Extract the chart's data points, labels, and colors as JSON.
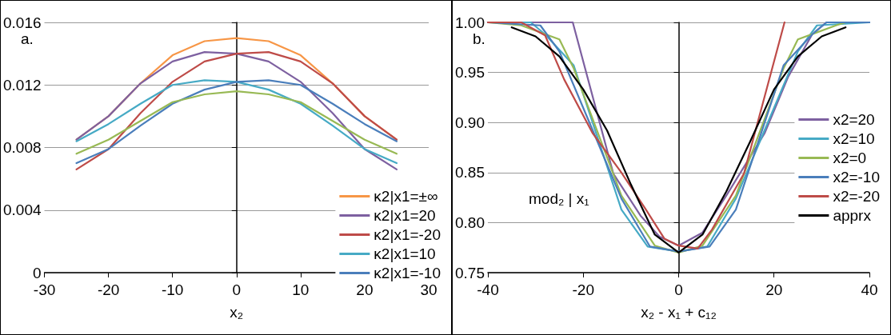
{
  "chart_data": [
    {
      "type": "line",
      "title": "a.",
      "xlabel": "x₂",
      "xlim": [
        -30,
        30
      ],
      "xticks": [
        -30,
        -20,
        -10,
        0,
        10,
        20,
        30
      ],
      "ylim": [
        0,
        0.016
      ],
      "yticks": [
        0,
        0.004,
        0.008,
        0.012,
        0.016
      ],
      "grid": "y",
      "legend": "bottom right",
      "marker": "none",
      "line_style": "solid",
      "x": [
        -25,
        -20,
        -15,
        -10,
        -5,
        0,
        5,
        10,
        15,
        20,
        25
      ],
      "series": [
        {
          "name": "κ2|x1=±∞",
          "color": "#f79646",
          "values": [
            0.0085,
            0.01,
            0.0121,
            0.0139,
            0.0148,
            0.015,
            0.0148,
            0.0139,
            0.0121,
            0.01,
            0.0085
          ]
        },
        {
          "name": "κ2|x1=20",
          "color": "#7d60a0",
          "values": [
            0.0085,
            0.01,
            0.0121,
            0.0135,
            0.0141,
            0.014,
            0.0135,
            0.0122,
            0.0102,
            0.0079,
            0.0066
          ]
        },
        {
          "name": "κ2|x1=-20",
          "color": "#be4b48",
          "values": [
            0.0066,
            0.0079,
            0.0102,
            0.0122,
            0.0135,
            0.014,
            0.0141,
            0.0135,
            0.0121,
            0.01,
            0.0085
          ]
        },
        {
          "name": "κ2|x1=10",
          "color": "#46aac5",
          "values": [
            0.0084,
            0.0095,
            0.0108,
            0.012,
            0.0123,
            0.0122,
            0.0117,
            0.0108,
            0.0094,
            0.0079,
            0.007
          ]
        },
        {
          "name": "κ2|x1=-10",
          "color": "#4a7ebb",
          "values": [
            0.007,
            0.0079,
            0.0094,
            0.0108,
            0.0117,
            0.0122,
            0.0123,
            0.012,
            0.0108,
            0.0095,
            0.0084
          ]
        },
        {
          "color": "#98b954",
          "values": [
            0.0076,
            0.0085,
            0.0097,
            0.0109,
            0.0114,
            0.0116,
            0.0114,
            0.0109,
            0.0097,
            0.0085,
            0.0076
          ]
        }
      ]
    },
    {
      "type": "line",
      "title": "b.",
      "xlabel": "x₂ - x₁ + c₁₂",
      "ylabel": "mod₂ | x₁",
      "xlim": [
        -40,
        40
      ],
      "xticks": [
        -40,
        -20,
        0,
        20,
        40
      ],
      "ylim": [
        0.75,
        1
      ],
      "yticks": [
        {
          "value": 0.75,
          "label": "0.75"
        },
        {
          "value": 0.8,
          "label": "0.80"
        },
        {
          "value": 0.85,
          "label": "0.85"
        },
        {
          "value": 0.9,
          "label": "0.90"
        },
        {
          "value": 0.95,
          "label": "0.95"
        },
        {
          "value": 1,
          "label": "1.00"
        }
      ],
      "grid": "y",
      "legend": "right",
      "marker": "none",
      "line_style": "solid",
      "series": [
        {
          "name": "x2=20",
          "color": "#7d60a0",
          "x": [
            -40,
            -22.2,
            -13.7,
            -8,
            -4,
            0,
            5,
            10,
            18,
            23,
            28,
            31,
            40
          ],
          "values": [
            1,
            1,
            0.849,
            0.807,
            0.786,
            0.777,
            0.79,
            0.827,
            0.889,
            0.946,
            0.988,
            1,
            1
          ]
        },
        {
          "name": "x2=10",
          "color": "#46aac5",
          "x": [
            -40,
            -31,
            -28,
            -22,
            -12,
            -6.5,
            0,
            6,
            12,
            18,
            25,
            29,
            40
          ],
          "values": [
            1,
            1,
            0.988,
            0.957,
            0.813,
            0.776,
            0.771,
            0.776,
            0.824,
            0.892,
            0.971,
            0.997,
            1
          ]
        },
        {
          "name": "x2=0",
          "color": "#98b954",
          "x": [
            -40,
            -33,
            -25,
            -22,
            -12,
            -5,
            0,
            5,
            12,
            22,
            25,
            33,
            35
          ],
          "values": [
            1,
            0.997,
            0.983,
            0.954,
            0.827,
            0.777,
            0.77,
            0.777,
            0.827,
            0.954,
            0.983,
            0.997,
            1
          ]
        },
        {
          "name": "x2=-10",
          "color": "#4a7ebb",
          "x": [
            -40,
            -29,
            -25,
            -18,
            -12,
            -6,
            0,
            6.5,
            12,
            22,
            28,
            31,
            40
          ],
          "values": [
            1,
            0.997,
            0.971,
            0.892,
            0.824,
            0.776,
            0.771,
            0.776,
            0.813,
            0.957,
            0.988,
            1,
            1
          ]
        },
        {
          "name": "x2=-20",
          "color": "#be4b48",
          "x": [
            -40,
            -33,
            -28,
            -24,
            -18,
            -12,
            -7,
            -3,
            0,
            4,
            7,
            13.7,
            22.2
          ],
          "values": [
            1,
            1,
            0.987,
            0.943,
            0.889,
            0.85,
            0.814,
            0.784,
            0.777,
            0.774,
            0.793,
            0.849,
            1
          ]
        },
        {
          "name": "apprx",
          "color": "#000000",
          "x": [
            -35,
            -30,
            -25,
            -20,
            -15,
            -10,
            -5,
            0,
            5,
            10,
            15,
            20,
            25,
            30,
            35
          ],
          "values": [
            0.995,
            0.986,
            0.966,
            0.933,
            0.892,
            0.838,
            0.788,
            0.77,
            0.788,
            0.831,
            0.881,
            0.933,
            0.966,
            0.986,
            0.995
          ]
        }
      ]
    }
  ]
}
